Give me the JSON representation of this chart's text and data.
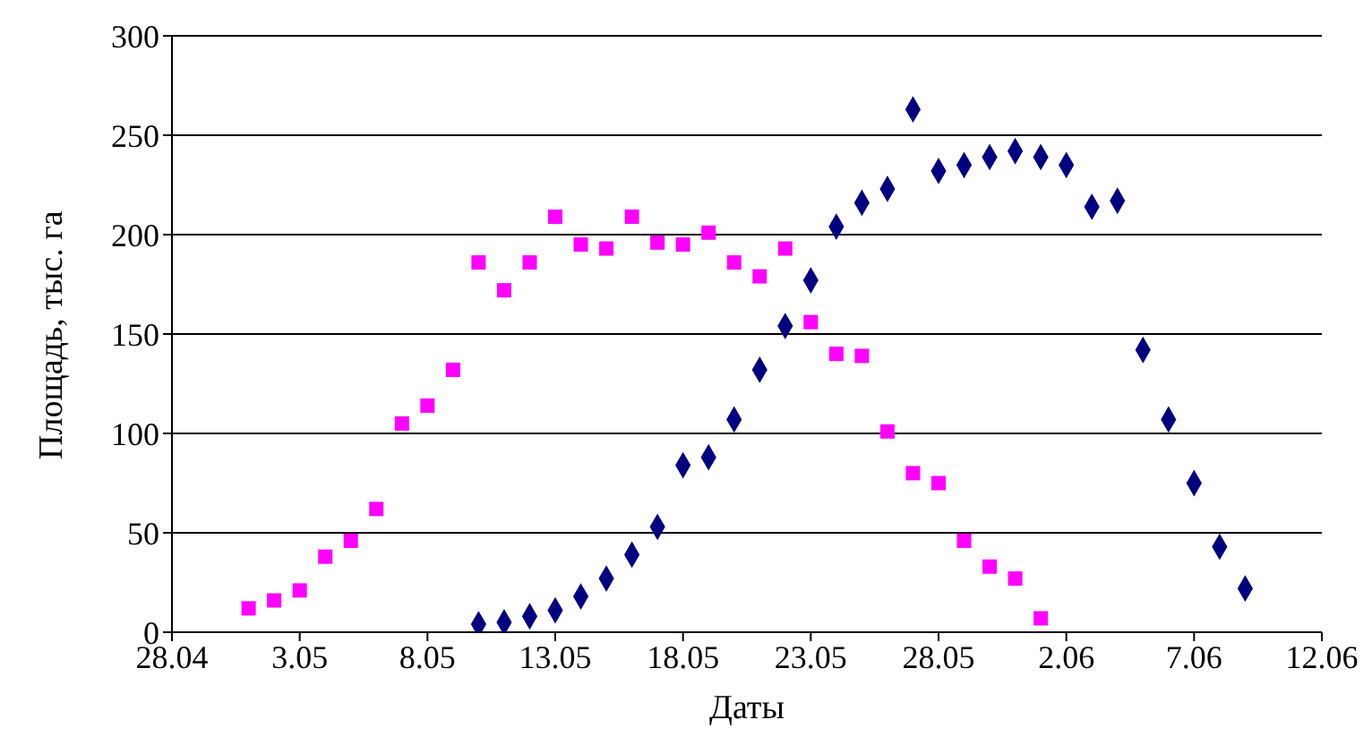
{
  "chart_data": {
    "type": "scatter",
    "xlabel": "Даты",
    "ylabel": "Площадь, тыс. га",
    "grid": "y",
    "ylim": [
      0,
      300
    ],
    "yticks": [
      0,
      50,
      100,
      150,
      200,
      250,
      300
    ],
    "xlim": [
      "--04-28",
      "--06-12"
    ],
    "xticks": [
      {
        "value": "--04-28",
        "label": "28.04"
      },
      {
        "value": "--05-03",
        "label": "3.05"
      },
      {
        "value": "--05-08",
        "label": "8.05"
      },
      {
        "value": "--05-13",
        "label": "13.05"
      },
      {
        "value": "--05-18",
        "label": "18.05"
      },
      {
        "value": "--05-23",
        "label": "23.05"
      },
      {
        "value": "--05-28",
        "label": "28.05"
      },
      {
        "value": "--06-02",
        "label": "2.06"
      },
      {
        "value": "--06-07",
        "label": "7.06"
      },
      {
        "value": "--06-12",
        "label": "12.06"
      }
    ],
    "series": [
      {
        "color": "#ff00ff",
        "marker": "square",
        "x": [
          "--05-01",
          "--05-02",
          "--05-03",
          "--05-04",
          "--05-05",
          "--05-06",
          "--05-07",
          "--05-08",
          "--05-09",
          "--05-10",
          "--05-11",
          "--05-12",
          "--05-13",
          "--05-14",
          "--05-15",
          "--05-16",
          "--05-17",
          "--05-18",
          "--05-19",
          "--05-20",
          "--05-21",
          "--05-22",
          "--05-23",
          "--05-24",
          "--05-25",
          "--05-26",
          "--05-27",
          "--05-28",
          "--05-29",
          "--05-30",
          "--05-31",
          "--06-01"
        ],
        "values": [
          12,
          16,
          21,
          38,
          46,
          62,
          105,
          114,
          132,
          186,
          172,
          186,
          209,
          195,
          193,
          209,
          196,
          195,
          201,
          186,
          179,
          193,
          156,
          140,
          139,
          101,
          80,
          75,
          46,
          33,
          27,
          7
        ]
      },
      {
        "color": "#000080",
        "marker": "diamond",
        "x": [
          "--05-10",
          "--05-11",
          "--05-12",
          "--05-13",
          "--05-14",
          "--05-15",
          "--05-16",
          "--05-17",
          "--05-18",
          "--05-19",
          "--05-20",
          "--05-21",
          "--05-22",
          "--05-23",
          "--05-24",
          "--05-25",
          "--05-26",
          "--05-27",
          "--05-28",
          "--05-29",
          "--05-30",
          "--05-31",
          "--06-01",
          "--06-02",
          "--06-03",
          "--06-04",
          "--06-05",
          "--06-06",
          "--06-07",
          "--06-08",
          "--06-09"
        ],
        "values": [
          4,
          5,
          8,
          11,
          18,
          27,
          39,
          53,
          84,
          88,
          107,
          132,
          154,
          177,
          204,
          216,
          223,
          263,
          232,
          235,
          239,
          242,
          239,
          235,
          214,
          217,
          142,
          107,
          75,
          43,
          22
        ]
      }
    ]
  }
}
